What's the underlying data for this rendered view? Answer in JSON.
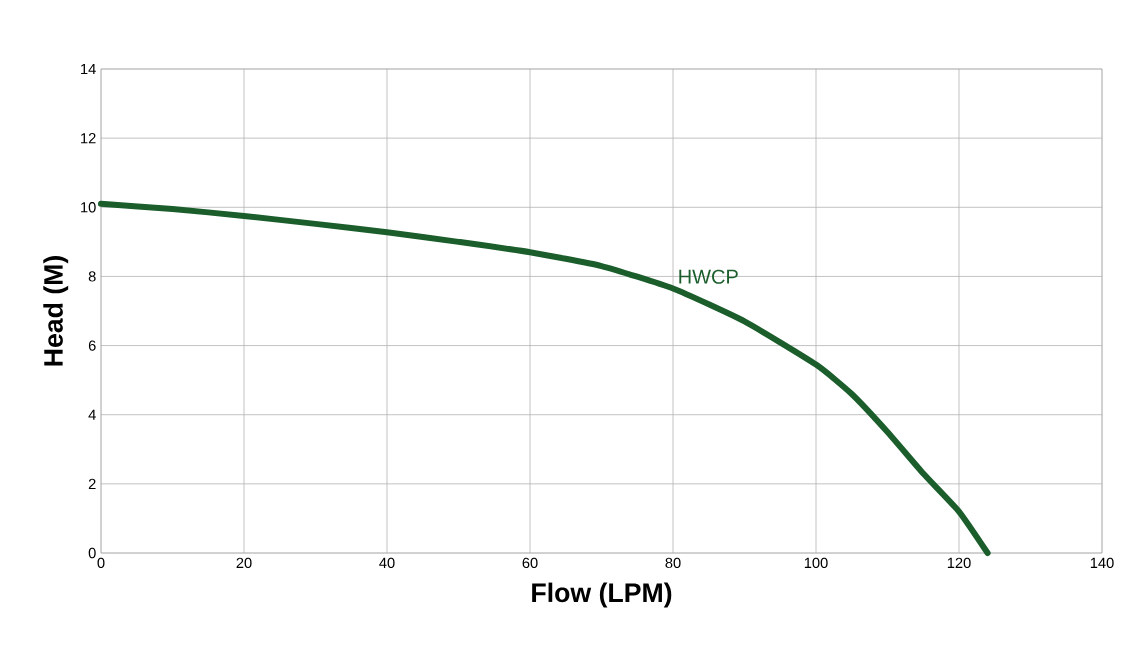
{
  "chart_data": {
    "type": "line",
    "xlabel": "Flow (LPM)",
    "ylabel": "Head (M)",
    "x": [
      0,
      10,
      20,
      30,
      40,
      50,
      60,
      70,
      80,
      90,
      100,
      105,
      110,
      115,
      120,
      124
    ],
    "series": [
      {
        "name": "HWCP",
        "color": "#1b5e2c",
        "values": [
          10.1,
          9.95,
          9.75,
          9.52,
          9.28,
          9.0,
          8.7,
          8.3,
          7.65,
          6.7,
          5.45,
          4.6,
          3.5,
          2.3,
          1.2,
          0
        ]
      }
    ],
    "xlim": [
      0,
      140
    ],
    "ylim": [
      0,
      14
    ],
    "xticks": [
      0,
      20,
      40,
      60,
      80,
      100,
      120,
      140
    ],
    "yticks": [
      0,
      2,
      4,
      6,
      8,
      10,
      12,
      14
    ],
    "grid": true,
    "legend": false,
    "marker": "none",
    "line_style": "solid"
  }
}
